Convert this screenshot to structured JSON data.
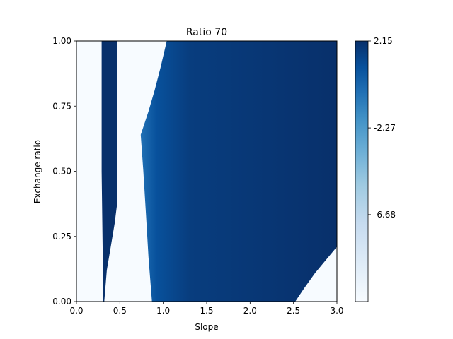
{
  "chart_data": {
    "type": "heatmap",
    "title": "Ratio 70",
    "xlabel": "Slope",
    "ylabel": "Exchange ratio",
    "xlim": [
      0.0,
      3.0
    ],
    "ylim": [
      0.0,
      1.0
    ],
    "x_ticks": [
      "0.0",
      "0.5",
      "1.0",
      "1.5",
      "2.0",
      "2.5",
      "3.0"
    ],
    "y_ticks": [
      "0.00",
      "0.25",
      "0.50",
      "0.75",
      "1.00"
    ],
    "colorbar": {
      "colormap": "Blues",
      "vmin": -11.1,
      "vmax": 2.15,
      "tick_labels": [
        "2.15",
        "-2.27",
        "-6.68"
      ],
      "tick_values": [
        2.15,
        -2.27,
        -6.68
      ]
    },
    "regions": [
      {
        "name": "left-blue-band",
        "value": 2.15,
        "boundary": [
          [
            0.29,
            1.0
          ],
          [
            0.47,
            1.0
          ],
          [
            0.47,
            0.38
          ],
          [
            0.44,
            0.3
          ],
          [
            0.4,
            0.22
          ],
          [
            0.35,
            0.12
          ],
          [
            0.32,
            0.0
          ],
          [
            0.31,
            0.0
          ],
          [
            0.29,
            0.5
          ]
        ]
      },
      {
        "name": "main-blue-region",
        "value": 2.15,
        "min_value_near_edge": 1.2,
        "boundary": [
          [
            1.04,
            1.0
          ],
          [
            3.0,
            1.0
          ],
          [
            3.0,
            0.21
          ],
          [
            2.9,
            0.17
          ],
          [
            2.75,
            0.11
          ],
          [
            2.62,
            0.05
          ],
          [
            2.52,
            0.0
          ],
          [
            0.87,
            0.0
          ],
          [
            0.83,
            0.17
          ],
          [
            0.8,
            0.34
          ],
          [
            0.77,
            0.5
          ],
          [
            0.74,
            0.64
          ],
          [
            0.75,
            0.65
          ],
          [
            0.83,
            0.73
          ],
          [
            0.9,
            0.81
          ],
          [
            0.97,
            0.9
          ]
        ]
      }
    ],
    "background_value": -11.1,
    "colors": {
      "max": "#08306b",
      "mid": "#2171b5",
      "min": "#f7fbff"
    }
  }
}
